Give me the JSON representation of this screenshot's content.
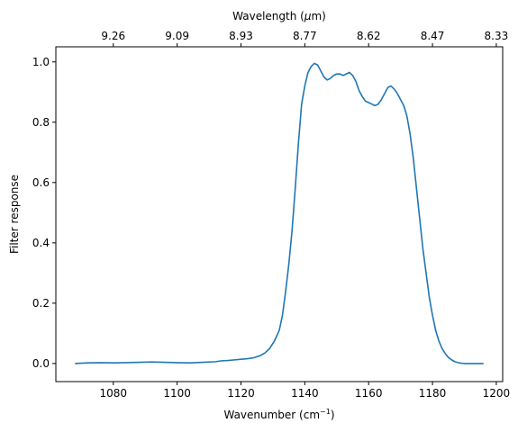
{
  "chart_data": {
    "type": "line",
    "title": "",
    "xlabel": "Wavenumber (cm",
    "xlabel_sup": "−1",
    "xlabel_suffix": ")",
    "ylabel": "Filter response",
    "top_xlabel": "Wavelength (",
    "top_xlabel_mu": "μ",
    "top_xlabel_suffix": "m)",
    "xlim": [
      1062,
      1202
    ],
    "ylim": [
      -0.06,
      1.05
    ],
    "xticks": [
      1080,
      1100,
      1120,
      1140,
      1160,
      1180,
      1200
    ],
    "yticks": [
      0.0,
      0.2,
      0.4,
      0.6,
      0.8,
      1.0
    ],
    "top_ticks": [
      {
        "label": "9.26",
        "wavenumber": 1080
      },
      {
        "label": "9.09",
        "wavenumber": 1100
      },
      {
        "label": "8.93",
        "wavenumber": 1120
      },
      {
        "label": "8.77",
        "wavenumber": 1140
      },
      {
        "label": "8.62",
        "wavenumber": 1160
      },
      {
        "label": "8.47",
        "wavenumber": 1180
      },
      {
        "label": "8.33",
        "wavenumber": 1200
      }
    ],
    "line_color": "#1f77b4",
    "grid": false,
    "series": [
      {
        "x": [
          1068,
          1072,
          1076,
          1080,
          1084,
          1088,
          1092,
          1096,
          1100,
          1104,
          1108,
          1112,
          1114,
          1116,
          1118,
          1120,
          1122,
          1124,
          1126,
          1127.5,
          1129,
          1130.5,
          1132,
          1133,
          1134,
          1135,
          1136,
          1137,
          1138,
          1139,
          1140,
          1141,
          1142,
          1143,
          1144,
          1145,
          1146,
          1147,
          1148,
          1149,
          1150,
          1151,
          1152,
          1153,
          1154,
          1155,
          1156,
          1157,
          1158,
          1159,
          1160,
          1161,
          1162,
          1163,
          1164,
          1165,
          1166,
          1167,
          1168,
          1169,
          1170,
          1171,
          1172,
          1173,
          1174,
          1175,
          1176,
          1177,
          1178,
          1179,
          1180,
          1181,
          1182,
          1183,
          1184,
          1185,
          1186,
          1187,
          1188,
          1189,
          1190,
          1191,
          1192,
          1193,
          1194,
          1195,
          1196
        ],
        "y": [
          0.0,
          0.002,
          0.003,
          0.002,
          0.003,
          0.004,
          0.005,
          0.004,
          0.003,
          0.002,
          0.004,
          0.006,
          0.009,
          0.01,
          0.012,
          0.014,
          0.016,
          0.019,
          0.026,
          0.035,
          0.05,
          0.075,
          0.11,
          0.16,
          0.24,
          0.33,
          0.44,
          0.58,
          0.73,
          0.86,
          0.92,
          0.965,
          0.985,
          0.995,
          0.99,
          0.97,
          0.95,
          0.94,
          0.945,
          0.955,
          0.96,
          0.96,
          0.955,
          0.96,
          0.965,
          0.955,
          0.935,
          0.905,
          0.885,
          0.87,
          0.865,
          0.86,
          0.855,
          0.86,
          0.875,
          0.895,
          0.915,
          0.92,
          0.91,
          0.895,
          0.875,
          0.855,
          0.82,
          0.76,
          0.68,
          0.58,
          0.48,
          0.38,
          0.3,
          0.22,
          0.16,
          0.11,
          0.075,
          0.05,
          0.033,
          0.02,
          0.012,
          0.006,
          0.003,
          0.001,
          0.0,
          0.0,
          0.0,
          0.0,
          0.0,
          0.0,
          0.0
        ]
      }
    ]
  }
}
